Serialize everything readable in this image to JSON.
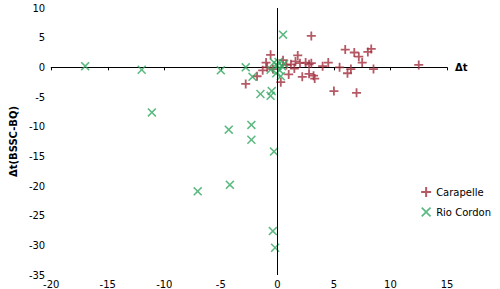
{
  "chart_data": {
    "type": "scatter",
    "x_label": "Δt",
    "y_label": "Δt(BSSC-BQ)",
    "xlim": [
      -20,
      15
    ],
    "xticks": [
      -20,
      -15,
      -10,
      -5,
      0,
      5,
      10,
      15
    ],
    "ylim": [
      -35,
      10
    ],
    "yticks": [
      -35,
      -30,
      -25,
      -20,
      -15,
      -10,
      -5,
      0,
      5,
      10
    ],
    "grid": false,
    "legend": "right",
    "series": [
      {
        "name": "Carapelle",
        "color": "#a3303f",
        "marker": "plus",
        "x": [
          -2.8,
          -1.8,
          -1.3,
          -1,
          -0.6,
          -0.4,
          0.3,
          0.8,
          1,
          1.2,
          1.5,
          1.6,
          1.8,
          2,
          2.2,
          2.5,
          2.8,
          3,
          3,
          3.2,
          3.3,
          4,
          4.5,
          5,
          5.5,
          6,
          6.2,
          6.5,
          6.8,
          7,
          7.2,
          7.5,
          8,
          8.3,
          8.5,
          12.5,
          -0.9,
          0.5,
          2.8
        ],
        "y": [
          -2.8,
          -1.5,
          -0.5,
          0.8,
          2.1,
          -0.3,
          -2.5,
          0.4,
          -1.2,
          0.5,
          -0.2,
          1,
          2,
          0.7,
          -1.6,
          0.8,
          0.5,
          5.3,
          0.7,
          -1.4,
          -1.9,
          0.2,
          0.8,
          -4,
          0,
          3,
          -1,
          -0.3,
          2.5,
          -4.3,
          1.8,
          0.8,
          2.6,
          3.1,
          -0.3,
          0.4,
          0,
          1.2,
          -1.1
        ]
      },
      {
        "name": "Rio Cordon",
        "color": "#33a862",
        "marker": "x",
        "x": [
          -17,
          -12,
          -11.1,
          -7.05,
          -5,
          -4.3,
          -4.2,
          -2.8,
          -2.2,
          -2.3,
          -2.3,
          -1.5,
          -0.6,
          -0.5,
          -0.3,
          -0.4,
          -0.2,
          0.5,
          -0.3,
          0,
          0.2,
          0.4,
          -0.1,
          0.3,
          0.6,
          -0.6,
          0.1
        ],
        "y": [
          0.2,
          -0.4,
          -7.6,
          -20.9,
          -0.5,
          -10.5,
          -19.8,
          0,
          -1.6,
          -9.7,
          -12.2,
          -4.5,
          -4.8,
          -4,
          -14.2,
          -27.6,
          -30.4,
          5.5,
          0.8,
          0.3,
          -0.5,
          0.2,
          -1,
          -1.5,
          0.6,
          -0.4,
          0.9
        ]
      }
    ]
  }
}
